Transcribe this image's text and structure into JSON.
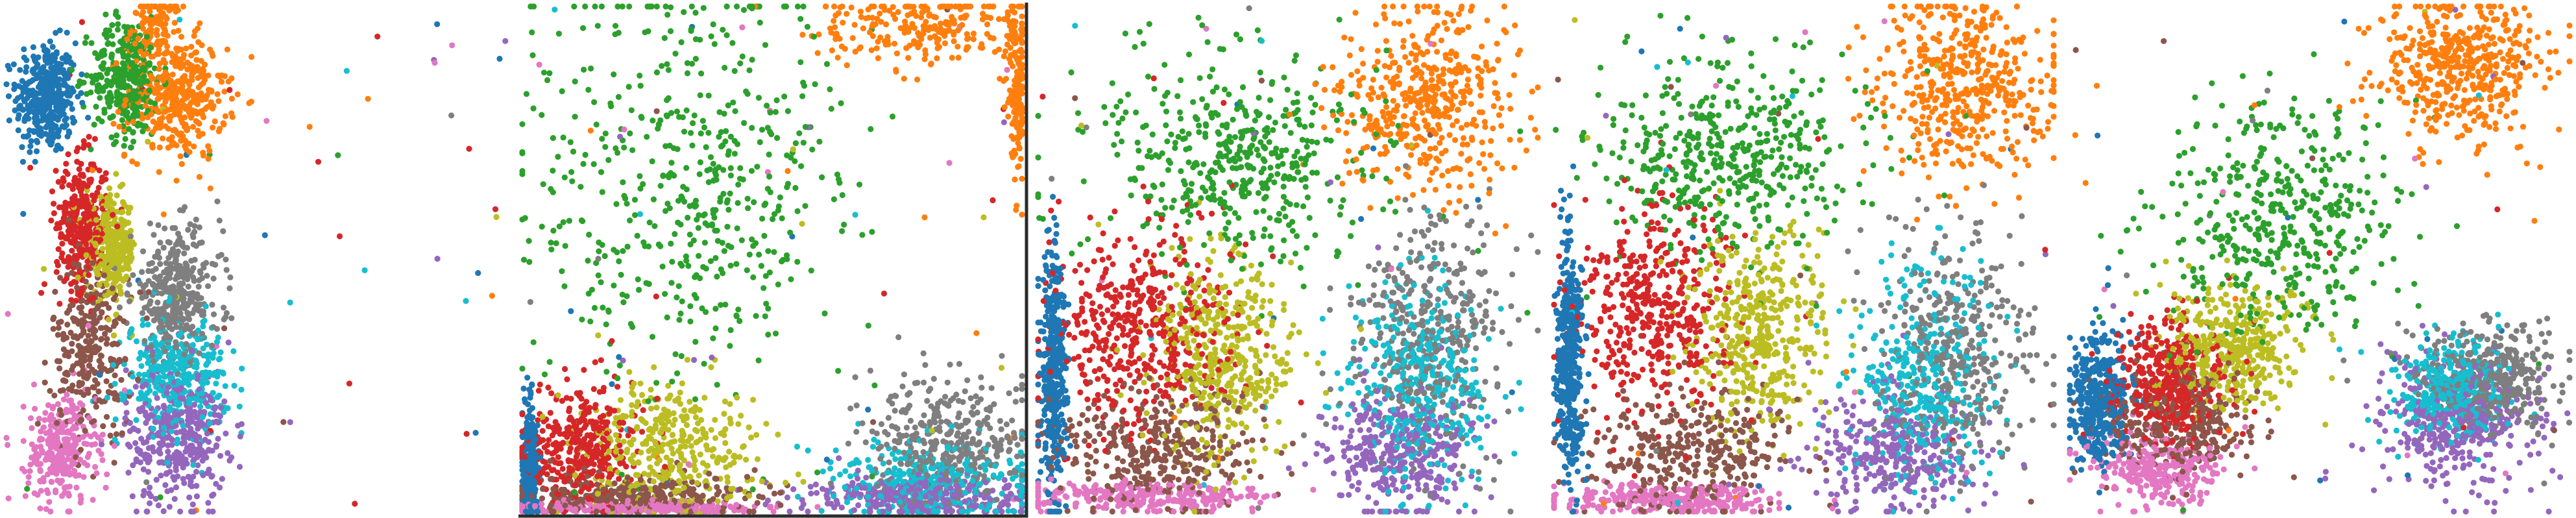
{
  "chart_data": [
    {
      "type": "scatter",
      "xlim": [
        0,
        100
      ],
      "ylim": [
        0,
        100
      ],
      "grid": false,
      "legend": "none",
      "series": [
        {
          "color": "#1f77b4",
          "clusters": [
            {
              "x": 8,
              "y": 82,
              "sx": 3.0,
              "sy": 5.5,
              "n": 380
            }
          ]
        },
        {
          "color": "#ff7f0e",
          "clusters": [
            {
              "x": 30,
              "y": 96,
              "sx": 2.5,
              "sy": 3.5,
              "n": 120
            },
            {
              "x": 34,
              "y": 82,
              "sx": 5.0,
              "sy": 6.0,
              "n": 380
            }
          ]
        },
        {
          "color": "#2ca02c",
          "clusters": [
            {
              "x": 24,
              "y": 86,
              "sx": 3.5,
              "sy": 6.0,
              "n": 340
            }
          ]
        },
        {
          "color": "#d62728",
          "clusters": [
            {
              "x": 15,
              "y": 57,
              "sx": 2.5,
              "sy": 6.5,
              "n": 340
            }
          ]
        },
        {
          "color": "#9467bd",
          "clusters": [
            {
              "x": 34,
              "y": 15,
              "sx": 5.0,
              "sy": 7.0,
              "n": 360
            }
          ]
        },
        {
          "color": "#8c564b",
          "clusters": [
            {
              "x": 17,
              "y": 33,
              "sx": 4.0,
              "sy": 9.0,
              "n": 300
            }
          ]
        },
        {
          "color": "#e377c2",
          "clusters": [
            {
              "x": 11,
              "y": 12,
              "sx": 3.5,
              "sy": 5.5,
              "n": 280
            }
          ]
        },
        {
          "color": "#7f7f7f",
          "clusters": [
            {
              "x": 34,
              "y": 43,
              "sx": 4.5,
              "sy": 6.5,
              "n": 360
            }
          ]
        },
        {
          "color": "#bcbd22",
          "clusters": [
            {
              "x": 21,
              "y": 52,
              "sx": 2.5,
              "sy": 5.0,
              "n": 320
            }
          ]
        },
        {
          "color": "#17becf",
          "clusters": [
            {
              "x": 34,
              "y": 27,
              "sx": 5.0,
              "sy": 5.5,
              "n": 340
            }
          ]
        }
      ]
    },
    {
      "type": "scatter",
      "xlim": [
        0,
        100
      ],
      "ylim": [
        0,
        100
      ],
      "grid": false,
      "legend": "none",
      "series": [
        {
          "color": "#1f77b4",
          "clusters": [
            {
              "x": 1.5,
              "y": 10,
              "sx": 0.8,
              "sy": 6.0,
              "n": 240
            }
          ]
        },
        {
          "color": "#ff7f0e",
          "clusters": [
            {
              "x": 80,
              "y": 96,
              "sx": 12.0,
              "sy": 4.0,
              "n": 240
            },
            {
              "x": 99,
              "y": 85,
              "sx": 1.0,
              "sy": 9.0,
              "n": 160
            }
          ]
        },
        {
          "color": "#2ca02c",
          "clusters": [
            {
              "x": 32,
              "y": 65,
              "sx": 16.0,
              "sy": 20.0,
              "n": 520
            }
          ]
        },
        {
          "color": "#d62728",
          "clusters": [
            {
              "x": 12,
              "y": 13,
              "sx": 6.0,
              "sy": 6.0,
              "n": 380
            }
          ]
        },
        {
          "color": "#9467bd",
          "clusters": [
            {
              "x": 80,
              "y": 3,
              "sx": 12.0,
              "sy": 2.0,
              "n": 320
            }
          ]
        },
        {
          "color": "#8c564b",
          "clusters": [
            {
              "x": 22,
              "y": 3,
              "sx": 12.0,
              "sy": 2.0,
              "n": 320
            }
          ]
        },
        {
          "color": "#e377c2",
          "clusters": [
            {
              "x": 20,
              "y": 0.8,
              "sx": 14.0,
              "sy": 0.6,
              "n": 280
            }
          ]
        },
        {
          "color": "#7f7f7f",
          "clusters": [
            {
              "x": 85,
              "y": 14,
              "sx": 8.0,
              "sy": 6.0,
              "n": 360
            }
          ]
        },
        {
          "color": "#bcbd22",
          "clusters": [
            {
              "x": 30,
              "y": 12,
              "sx": 9.0,
              "sy": 7.0,
              "n": 380
            }
          ]
        },
        {
          "color": "#17becf",
          "clusters": [
            {
              "x": 82,
              "y": 6,
              "sx": 10.0,
              "sy": 4.0,
              "n": 320
            }
          ]
        }
      ]
    },
    {
      "type": "scatter",
      "xlim": [
        0,
        100
      ],
      "ylim": [
        0,
        100
      ],
      "grid": false,
      "legend": "none",
      "series": [
        {
          "color": "#1f77b4",
          "clusters": [
            {
              "x": 3,
              "y": 28,
              "sx": 1.3,
              "sy": 12.0,
              "n": 420
            }
          ]
        },
        {
          "color": "#ff7f0e",
          "clusters": [
            {
              "x": 78,
              "y": 82,
              "sx": 9.0,
              "sy": 9.0,
              "n": 460
            }
          ]
        },
        {
          "color": "#2ca02c",
          "clusters": [
            {
              "x": 40,
              "y": 70,
              "sx": 14.0,
              "sy": 10.0,
              "n": 460
            }
          ]
        },
        {
          "color": "#d62728",
          "clusters": [
            {
              "x": 20,
              "y": 36,
              "sx": 9.0,
              "sy": 10.0,
              "n": 460
            }
          ]
        },
        {
          "color": "#9467bd",
          "clusters": [
            {
              "x": 72,
              "y": 12,
              "sx": 7.0,
              "sy": 6.0,
              "n": 360
            }
          ]
        },
        {
          "color": "#8c564b",
          "clusters": [
            {
              "x": 24,
              "y": 12,
              "sx": 10.0,
              "sy": 6.0,
              "n": 360
            }
          ]
        },
        {
          "color": "#e377c2",
          "clusters": [
            {
              "x": 22,
              "y": 3,
              "sx": 12.0,
              "sy": 1.5,
              "n": 280
            }
          ]
        },
        {
          "color": "#7f7f7f",
          "clusters": [
            {
              "x": 78,
              "y": 35,
              "sx": 8.0,
              "sy": 12.0,
              "n": 400
            }
          ]
        },
        {
          "color": "#bcbd22",
          "clusters": [
            {
              "x": 36,
              "y": 30,
              "sx": 7.0,
              "sy": 10.0,
              "n": 420
            }
          ]
        },
        {
          "color": "#17becf",
          "clusters": [
            {
              "x": 76,
              "y": 26,
              "sx": 7.0,
              "sy": 10.0,
              "n": 400
            }
          ]
        }
      ]
    },
    {
      "type": "scatter",
      "xlim": [
        0,
        100
      ],
      "ylim": [
        0,
        100
      ],
      "grid": false,
      "legend": "none",
      "series": [
        {
          "color": "#1f77b4",
          "clusters": [
            {
              "x": 3,
              "y": 30,
              "sx": 1.3,
              "sy": 12.0,
              "n": 420
            }
          ]
        },
        {
          "color": "#ff7f0e",
          "clusters": [
            {
              "x": 82,
              "y": 84,
              "sx": 9.0,
              "sy": 9.0,
              "n": 460
            }
          ]
        },
        {
          "color": "#2ca02c",
          "clusters": [
            {
              "x": 35,
              "y": 70,
              "sx": 13.0,
              "sy": 10.0,
              "n": 460
            }
          ]
        },
        {
          "color": "#d62728",
          "clusters": [
            {
              "x": 20,
              "y": 40,
              "sx": 8.0,
              "sy": 10.0,
              "n": 440
            }
          ]
        },
        {
          "color": "#9467bd",
          "clusters": [
            {
              "x": 68,
              "y": 12,
              "sx": 8.0,
              "sy": 6.0,
              "n": 340
            }
          ]
        },
        {
          "color": "#8c564b",
          "clusters": [
            {
              "x": 28,
              "y": 12,
              "sx": 10.0,
              "sy": 6.0,
              "n": 340
            }
          ]
        },
        {
          "color": "#e377c2",
          "clusters": [
            {
              "x": 22,
              "y": 2.5,
              "sx": 12.0,
              "sy": 1.5,
              "n": 280
            }
          ]
        },
        {
          "color": "#7f7f7f",
          "clusters": [
            {
              "x": 80,
              "y": 33,
              "sx": 8.0,
              "sy": 12.0,
              "n": 380
            }
          ]
        },
        {
          "color": "#bcbd22",
          "clusters": [
            {
              "x": 40,
              "y": 35,
              "sx": 7.0,
              "sy": 10.0,
              "n": 420
            }
          ]
        },
        {
          "color": "#17becf",
          "clusters": [
            {
              "x": 74,
              "y": 26,
              "sx": 7.0,
              "sy": 10.0,
              "n": 380
            }
          ]
        }
      ]
    },
    {
      "type": "scatter",
      "xlim": [
        0,
        100
      ],
      "ylim": [
        0,
        100
      ],
      "grid": false,
      "legend": "none",
      "series": [
        {
          "color": "#1f77b4",
          "clusters": [
            {
              "x": 6,
              "y": 22,
              "sx": 3.0,
              "sy": 7.0,
              "n": 380
            }
          ]
        },
        {
          "color": "#ff7f0e",
          "clusters": [
            {
              "x": 78,
              "y": 88,
              "sx": 8.0,
              "sy": 7.0,
              "n": 460
            }
          ]
        },
        {
          "color": "#2ca02c",
          "clusters": [
            {
              "x": 42,
              "y": 58,
              "sx": 12.0,
              "sy": 11.0,
              "n": 440
            }
          ]
        },
        {
          "color": "#d62728",
          "clusters": [
            {
              "x": 20,
              "y": 26,
              "sx": 6.0,
              "sy": 6.0,
              "n": 420
            }
          ]
        },
        {
          "color": "#9467bd",
          "clusters": [
            {
              "x": 78,
              "y": 17,
              "sx": 8.0,
              "sy": 6.0,
              "n": 360
            }
          ]
        },
        {
          "color": "#8c564b",
          "clusters": [
            {
              "x": 22,
              "y": 18,
              "sx": 7.0,
              "sy": 5.0,
              "n": 320
            }
          ]
        },
        {
          "color": "#e377c2",
          "clusters": [
            {
              "x": 18,
              "y": 8,
              "sx": 6.0,
              "sy": 3.5,
              "n": 280
            }
          ]
        },
        {
          "color": "#7f7f7f",
          "clusters": [
            {
              "x": 84,
              "y": 27,
              "sx": 7.0,
              "sy": 5.0,
              "n": 380
            }
          ]
        },
        {
          "color": "#bcbd22",
          "clusters": [
            {
              "x": 32,
              "y": 32,
              "sx": 7.0,
              "sy": 6.0,
              "n": 400
            }
          ]
        },
        {
          "color": "#17becf",
          "clusters": [
            {
              "x": 76,
              "y": 24,
              "sx": 6.0,
              "sy": 5.0,
              "n": 360
            }
          ]
        }
      ]
    }
  ]
}
